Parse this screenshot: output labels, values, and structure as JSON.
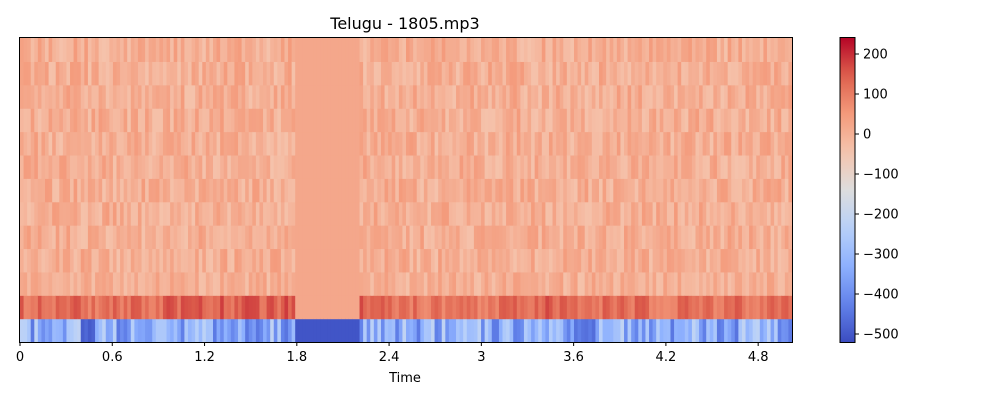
{
  "chart_data": {
    "type": "heatmap",
    "title": "Telugu - 1805.mp3",
    "xlabel": "Time",
    "ylabel": "",
    "xlim": [
      0,
      5.02
    ],
    "x_ticks": [
      0,
      0.6,
      1.2,
      1.8,
      2.4,
      3,
      3.6,
      4.2,
      4.8
    ],
    "x_tick_labels": [
      "0",
      "0.6",
      "1.2",
      "1.8",
      "2.4",
      "3",
      "3.6",
      "4.2",
      "4.8"
    ],
    "n_coefficients": 13,
    "colormap": "coolwarm",
    "colorbar": {
      "range": [
        -520,
        240
      ],
      "ticks": [
        200,
        100,
        0,
        -100,
        -200,
        -300,
        -400,
        -500
      ],
      "tick_labels": [
        "200",
        "100",
        "0",
        "−100",
        "−200",
        "−300",
        "−400",
        "−500"
      ]
    },
    "silent_segment": [
      1.8,
      2.2
    ],
    "grid": false,
    "values_by_row_approx": {
      "row_0_bottom": "about -500 in silence (x≈0.4-0.5 and 1.8-2.2); otherwise varies between -400 and -150",
      "row_1": "mostly 60 to 140, red peaks ~150 near x≈0.3, 1.0-1.8, 2.3, 3.4",
      "rows_2_to_12": "mostly -20 to 60 (light salmon), with scattered 60-100 highlights"
    }
  }
}
